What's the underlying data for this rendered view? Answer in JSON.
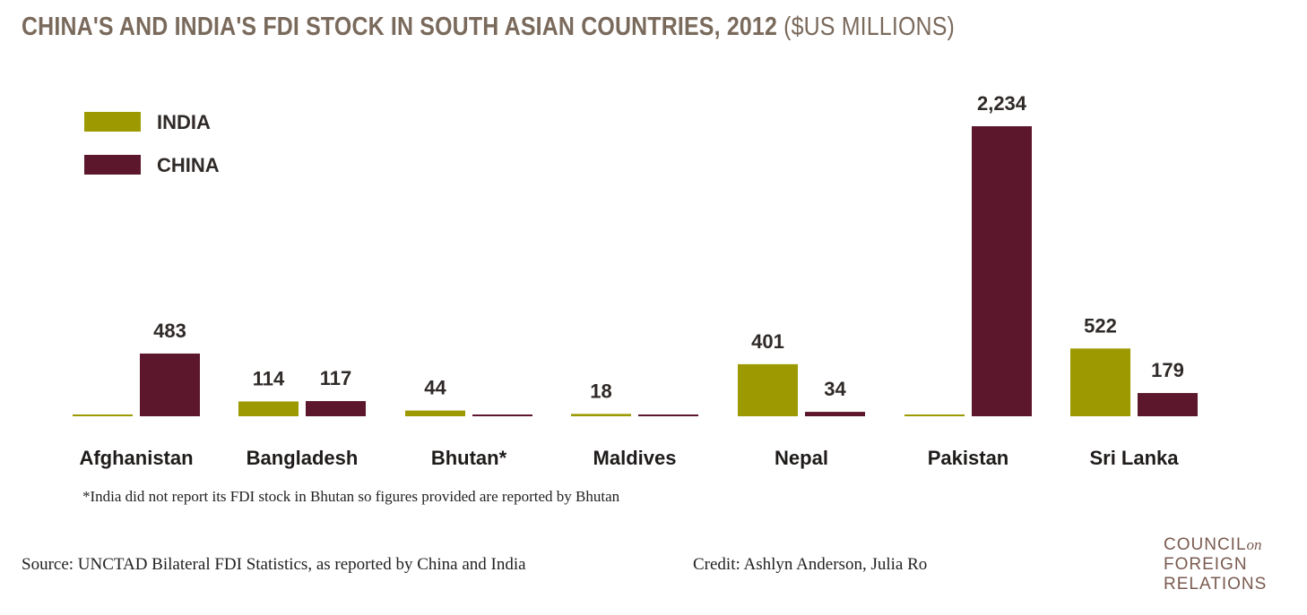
{
  "title": {
    "main": "CHINA'S AND INDIA'S FDI STOCK IN SOUTH ASIAN COUNTRIES, 2012",
    "unit": "($US MILLIONS)"
  },
  "colors": {
    "india": "#9c9a00",
    "china": "#5c172c",
    "title": "#7a6a5c"
  },
  "chart_data": {
    "type": "bar",
    "title": "CHINA'S AND INDIA'S FDI STOCK IN SOUTH ASIAN COUNTRIES, 2012 ($US MILLIONS)",
    "categories": [
      "Afghanistan",
      "Bangladesh",
      "Bhutan*",
      "Maldives",
      "Nepal",
      "Pakistan",
      "Sri Lanka"
    ],
    "series": [
      {
        "name": "INDIA",
        "values": [
          0,
          114,
          44,
          18,
          401,
          0,
          522
        ],
        "labels": [
          "",
          "114",
          "44",
          "18",
          "401",
          "",
          "522"
        ]
      },
      {
        "name": "CHINA",
        "values": [
          483,
          117,
          0,
          0,
          34,
          2234,
          179
        ],
        "labels": [
          "483",
          "117",
          "",
          "",
          "34",
          "2,234",
          "179"
        ]
      }
    ],
    "ylim": [
      0,
      2234
    ],
    "legend_position": "top-left",
    "grid": false,
    "xlabel": "",
    "ylabel": ""
  },
  "footnote": "*India did not report its FDI stock in Bhutan so figures provided are reported by Bhutan",
  "source": "Source: UNCTAD Bilateral FDI Statistics, as reported by China and India",
  "credit": "Credit: Ashlyn Anderson, Julia Ro",
  "logo": {
    "line1": "COUNCIL",
    "line1_suffix": "on",
    "line2": "FOREIGN",
    "line3": "RELATIONS"
  }
}
